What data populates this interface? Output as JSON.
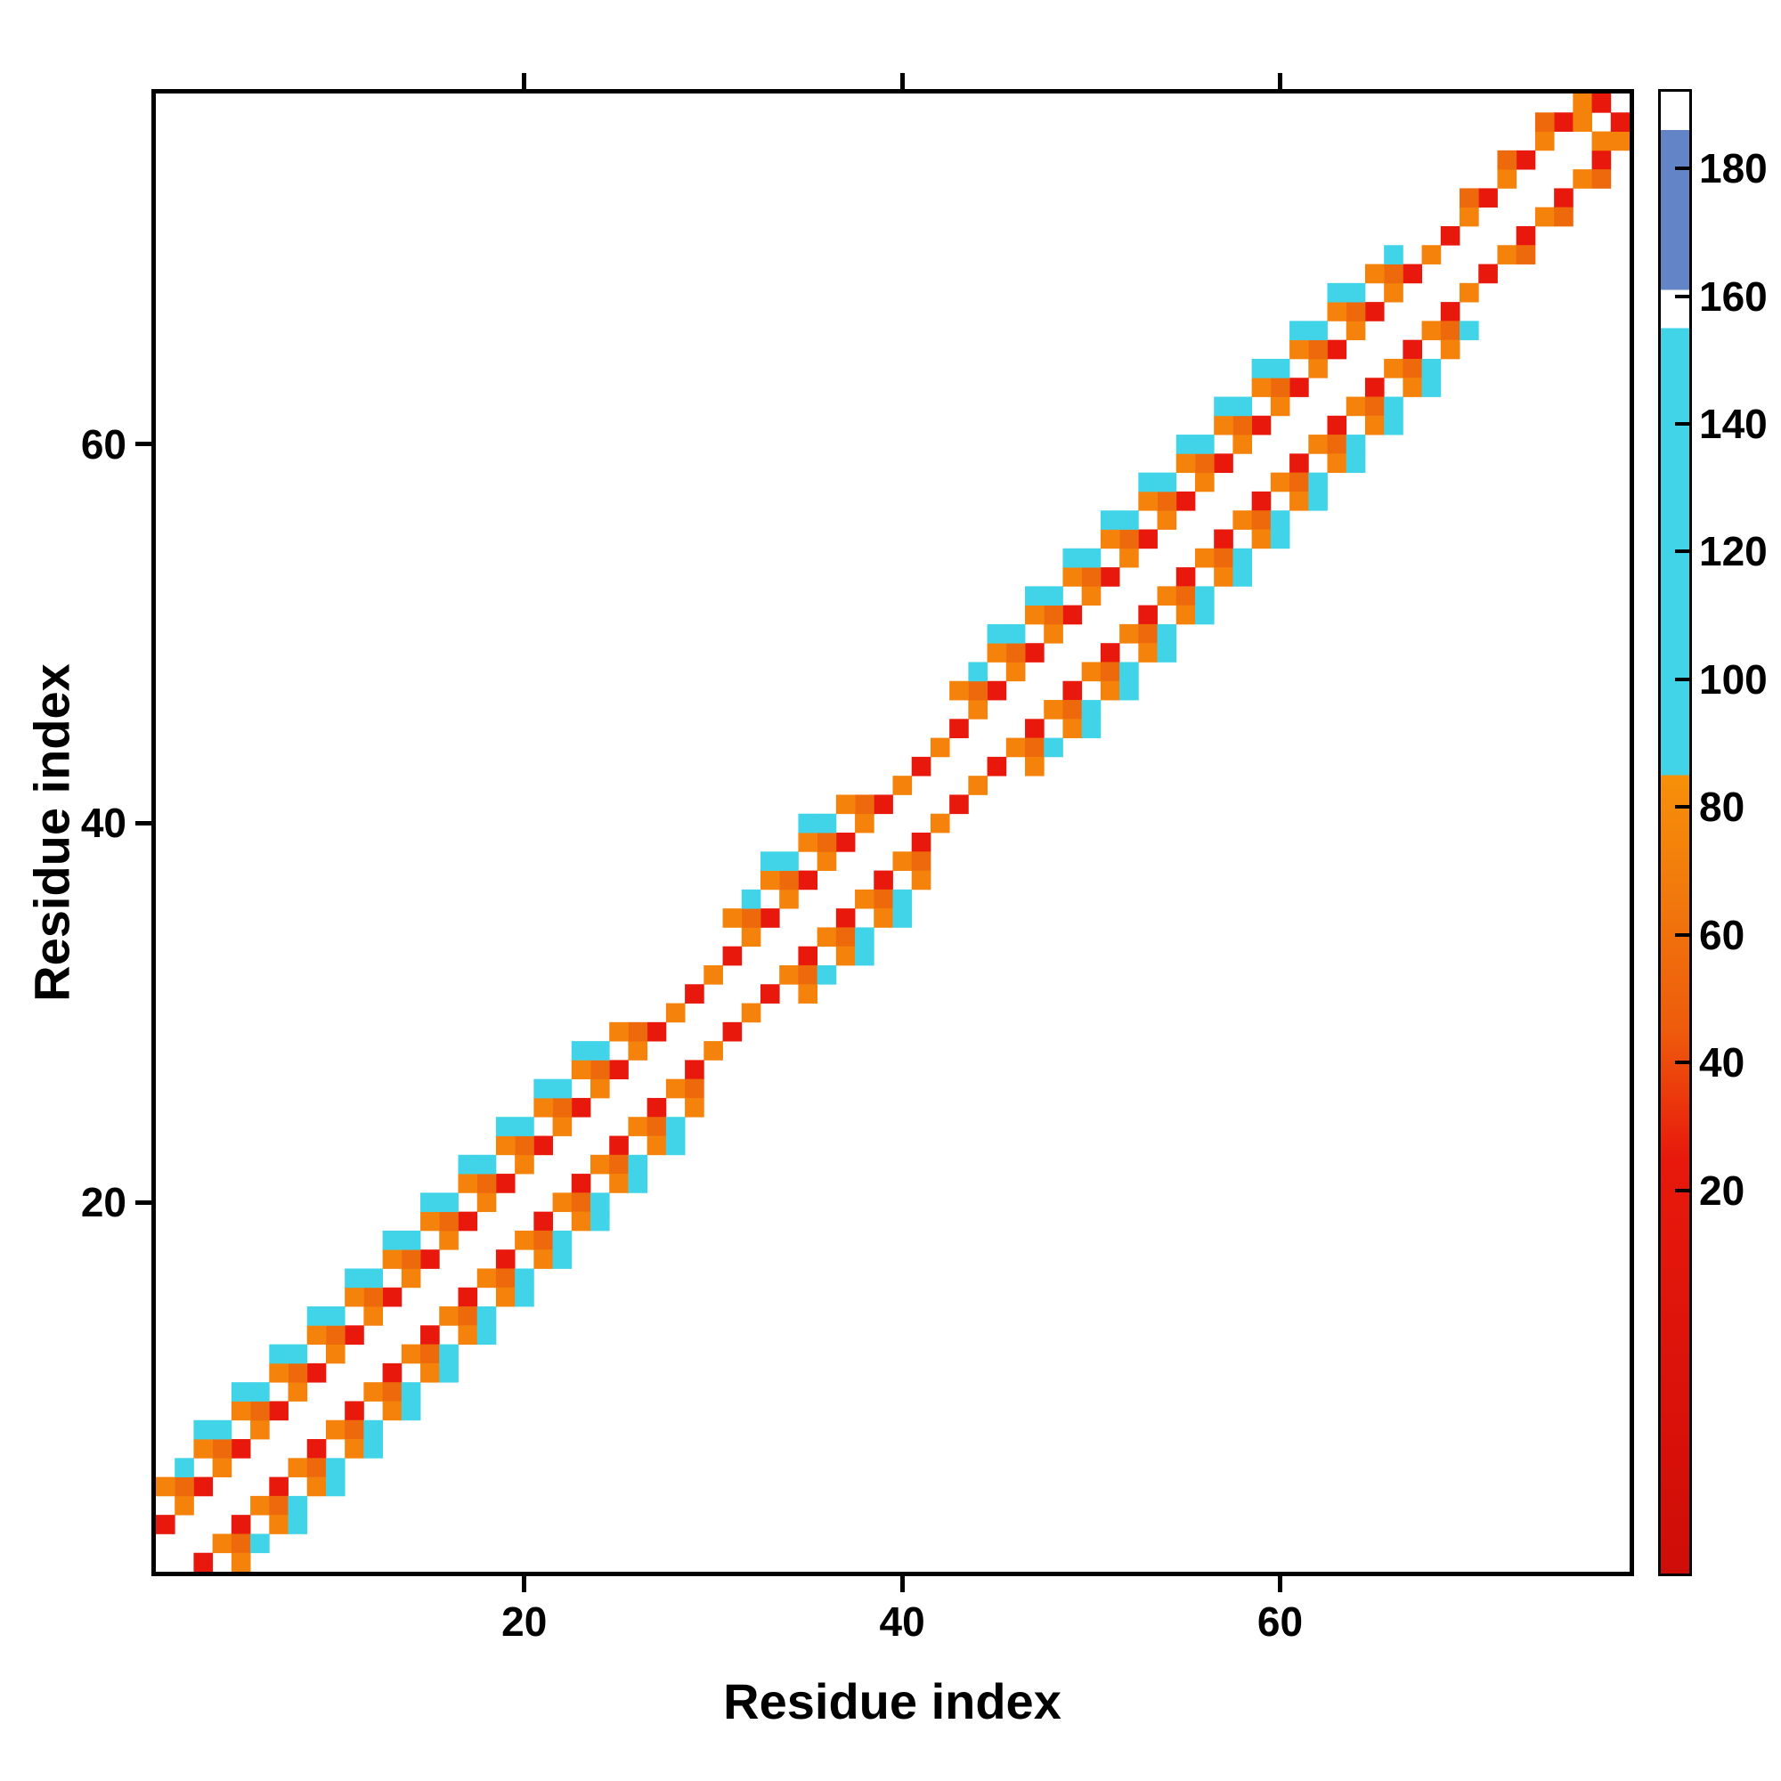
{
  "figure": {
    "x_axis_title": "Residue index",
    "y_axis_title": "Residue index"
  },
  "chart_data": {
    "type": "heatmap",
    "title": "",
    "xlabel": "Residue index",
    "ylabel": "Residue index",
    "x_range": [
      1,
      78
    ],
    "y_range": [
      1,
      78
    ],
    "x_ticks": [
      20,
      40,
      60
    ],
    "y_ticks": [
      20,
      40,
      60
    ],
    "grid": false,
    "symmetric": true,
    "background_color": "#ffffff",
    "value_colormap": [
      {
        "max": 35,
        "color": "#e8190c"
      },
      {
        "max": 62,
        "color": "#f5830b"
      },
      {
        "max": 85,
        "color": "#ee680c"
      },
      {
        "max": 157,
        "color": "#41d4e8"
      },
      {
        "max": 162,
        "color": "#ffffff"
      },
      {
        "max": 186,
        "color": "#6484c8"
      },
      {
        "max": 9999,
        "color": "#ffffff"
      }
    ],
    "colorbar": {
      "ticks": [
        20,
        40,
        60,
        80,
        100,
        120,
        140,
        160,
        180
      ],
      "vmin": -40,
      "vmax": 192,
      "stops": [
        {
          "v": -40,
          "c": "#cf0d08"
        },
        {
          "v": 25,
          "c": "#e8190c"
        },
        {
          "v": 45,
          "c": "#ee5b0c"
        },
        {
          "v": 65,
          "c": "#f1770c"
        },
        {
          "v": 85,
          "c": "#f79009"
        },
        {
          "v": 85.01,
          "c": "#41d4e8"
        },
        {
          "v": 155,
          "c": "#41d4e8"
        },
        {
          "v": 155.01,
          "c": "#ffffff"
        },
        {
          "v": 161,
          "c": "#ffffff"
        },
        {
          "v": 161.01,
          "c": "#6484c8"
        },
        {
          "v": 186,
          "c": "#6484c8"
        },
        {
          "v": 186.01,
          "c": "#ffffff"
        },
        {
          "v": 192,
          "c": "#ffffff"
        }
      ]
    },
    "cells": [
      [
        1,
        3,
        20
      ],
      [
        2,
        4,
        55
      ],
      [
        3,
        5,
        20
      ],
      [
        4,
        6,
        55
      ],
      [
        5,
        7,
        20
      ],
      [
        6,
        8,
        55
      ],
      [
        7,
        9,
        20
      ],
      [
        8,
        10,
        55
      ],
      [
        9,
        11,
        20
      ],
      [
        10,
        12,
        55
      ],
      [
        11,
        13,
        20
      ],
      [
        12,
        14,
        55
      ],
      [
        13,
        15,
        20
      ],
      [
        14,
        16,
        55
      ],
      [
        15,
        17,
        20
      ],
      [
        16,
        18,
        55
      ],
      [
        17,
        19,
        20
      ],
      [
        18,
        20,
        55
      ],
      [
        19,
        21,
        20
      ],
      [
        20,
        22,
        55
      ],
      [
        21,
        23,
        20
      ],
      [
        22,
        24,
        55
      ],
      [
        23,
        25,
        20
      ],
      [
        24,
        26,
        55
      ],
      [
        25,
        27,
        20
      ],
      [
        26,
        28,
        55
      ],
      [
        27,
        29,
        20
      ],
      [
        2,
        5,
        70
      ],
      [
        4,
        7,
        70
      ],
      [
        6,
        9,
        70
      ],
      [
        8,
        11,
        70
      ],
      [
        10,
        13,
        70
      ],
      [
        12,
        15,
        70
      ],
      [
        14,
        17,
        70
      ],
      [
        16,
        19,
        70
      ],
      [
        18,
        21,
        70
      ],
      [
        20,
        23,
        70
      ],
      [
        22,
        25,
        70
      ],
      [
        24,
        27,
        70
      ],
      [
        26,
        29,
        70
      ],
      [
        1,
        5,
        55
      ],
      [
        2,
        6,
        110
      ],
      [
        3,
        7,
        55
      ],
      [
        4,
        8,
        110
      ],
      [
        5,
        9,
        55
      ],
      [
        6,
        10,
        110
      ],
      [
        7,
        11,
        55
      ],
      [
        8,
        12,
        110
      ],
      [
        9,
        13,
        55
      ],
      [
        10,
        14,
        110
      ],
      [
        11,
        15,
        55
      ],
      [
        12,
        16,
        110
      ],
      [
        13,
        17,
        55
      ],
      [
        14,
        18,
        110
      ],
      [
        15,
        19,
        55
      ],
      [
        16,
        20,
        110
      ],
      [
        17,
        21,
        55
      ],
      [
        18,
        22,
        110
      ],
      [
        19,
        23,
        55
      ],
      [
        20,
        24,
        110
      ],
      [
        21,
        25,
        55
      ],
      [
        22,
        26,
        110
      ],
      [
        23,
        27,
        55
      ],
      [
        24,
        28,
        110
      ],
      [
        25,
        29,
        55
      ],
      [
        3,
        8,
        110
      ],
      [
        5,
        10,
        110
      ],
      [
        7,
        12,
        110
      ],
      [
        9,
        14,
        110
      ],
      [
        11,
        16,
        110
      ],
      [
        13,
        18,
        110
      ],
      [
        15,
        20,
        110
      ],
      [
        17,
        22,
        110
      ],
      [
        19,
        24,
        110
      ],
      [
        21,
        26,
        110
      ],
      [
        23,
        28,
        110
      ],
      [
        28,
        30,
        55
      ],
      [
        29,
        31,
        20
      ],
      [
        30,
        32,
        55
      ],
      [
        31,
        33,
        20
      ],
      [
        32,
        34,
        55
      ],
      [
        33,
        35,
        20
      ],
      [
        34,
        36,
        55
      ],
      [
        35,
        37,
        20
      ],
      [
        36,
        38,
        55
      ],
      [
        37,
        39,
        20
      ],
      [
        38,
        40,
        55
      ],
      [
        39,
        41,
        20
      ],
      [
        32,
        35,
        70
      ],
      [
        34,
        37,
        70
      ],
      [
        36,
        39,
        70
      ],
      [
        38,
        41,
        70
      ],
      [
        31,
        35,
        55
      ],
      [
        32,
        36,
        110
      ],
      [
        33,
        37,
        55
      ],
      [
        34,
        38,
        110
      ],
      [
        35,
        39,
        55
      ],
      [
        36,
        40,
        110
      ],
      [
        37,
        41,
        55
      ],
      [
        33,
        38,
        110
      ],
      [
        35,
        40,
        110
      ],
      [
        40,
        42,
        55
      ],
      [
        41,
        43,
        20
      ],
      [
        42,
        44,
        55
      ],
      [
        43,
        45,
        20
      ],
      [
        44,
        46,
        55
      ],
      [
        45,
        47,
        20
      ],
      [
        46,
        48,
        55
      ],
      [
        47,
        49,
        20
      ],
      [
        48,
        50,
        55
      ],
      [
        49,
        51,
        20
      ],
      [
        50,
        52,
        55
      ],
      [
        51,
        53,
        20
      ],
      [
        52,
        54,
        55
      ],
      [
        53,
        55,
        20
      ],
      [
        54,
        56,
        55
      ],
      [
        55,
        57,
        20
      ],
      [
        56,
        58,
        55
      ],
      [
        57,
        59,
        20
      ],
      [
        58,
        60,
        55
      ],
      [
        59,
        61,
        20
      ],
      [
        60,
        62,
        55
      ],
      [
        61,
        63,
        20
      ],
      [
        62,
        64,
        55
      ],
      [
        63,
        65,
        20
      ],
      [
        64,
        66,
        55
      ],
      [
        65,
        67,
        20
      ],
      [
        66,
        68,
        55
      ],
      [
        67,
        69,
        20
      ],
      [
        68,
        70,
        55
      ],
      [
        44,
        47,
        70
      ],
      [
        46,
        49,
        70
      ],
      [
        48,
        51,
        70
      ],
      [
        50,
        53,
        70
      ],
      [
        52,
        55,
        70
      ],
      [
        54,
        57,
        70
      ],
      [
        56,
        59,
        70
      ],
      [
        58,
        61,
        70
      ],
      [
        60,
        63,
        70
      ],
      [
        62,
        65,
        70
      ],
      [
        64,
        67,
        70
      ],
      [
        66,
        69,
        70
      ],
      [
        43,
        47,
        55
      ],
      [
        44,
        48,
        110
      ],
      [
        45,
        49,
        55
      ],
      [
        46,
        50,
        110
      ],
      [
        47,
        51,
        55
      ],
      [
        48,
        52,
        110
      ],
      [
        49,
        53,
        55
      ],
      [
        50,
        54,
        110
      ],
      [
        51,
        55,
        55
      ],
      [
        52,
        56,
        110
      ],
      [
        53,
        57,
        55
      ],
      [
        54,
        58,
        110
      ],
      [
        55,
        59,
        55
      ],
      [
        56,
        60,
        110
      ],
      [
        57,
        61,
        55
      ],
      [
        58,
        62,
        110
      ],
      [
        59,
        63,
        55
      ],
      [
        60,
        64,
        110
      ],
      [
        61,
        65,
        55
      ],
      [
        62,
        66,
        110
      ],
      [
        63,
        67,
        55
      ],
      [
        64,
        68,
        110
      ],
      [
        65,
        69,
        55
      ],
      [
        66,
        70,
        110
      ],
      [
        45,
        50,
        110
      ],
      [
        47,
        52,
        110
      ],
      [
        49,
        54,
        110
      ],
      [
        51,
        56,
        110
      ],
      [
        53,
        58,
        110
      ],
      [
        55,
        60,
        110
      ],
      [
        57,
        62,
        110
      ],
      [
        59,
        64,
        110
      ],
      [
        61,
        66,
        110
      ],
      [
        63,
        68,
        110
      ],
      [
        69,
        71,
        20
      ],
      [
        70,
        72,
        55
      ],
      [
        71,
        73,
        20
      ],
      [
        72,
        74,
        55
      ],
      [
        73,
        75,
        20
      ],
      [
        74,
        76,
        55
      ],
      [
        75,
        77,
        20
      ],
      [
        76,
        78,
        55
      ],
      [
        70,
        73,
        70
      ],
      [
        72,
        75,
        70
      ],
      [
        74,
        77,
        70
      ],
      [
        76,
        77,
        55
      ],
      [
        77,
        78,
        20
      ]
    ]
  }
}
